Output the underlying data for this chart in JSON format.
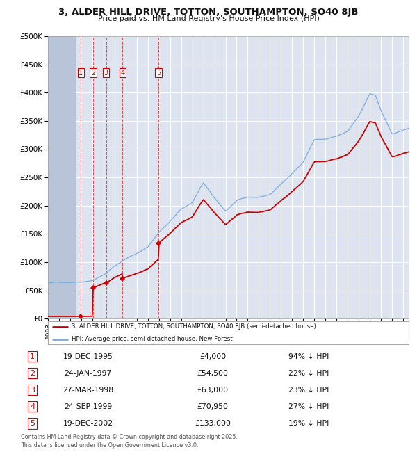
{
  "title": "3, ALDER HILL DRIVE, TOTTON, SOUTHAMPTON, SO40 8JB",
  "subtitle": "Price paid vs. HM Land Registry's House Price Index (HPI)",
  "red_label": "3, ALDER HILL DRIVE, TOTTON, SOUTHAMPTON, SO40 8JB (semi-detached house)",
  "blue_label": "HPI: Average price, semi-detached house, New Forest",
  "footer": "Contains HM Land Registry data © Crown copyright and database right 2025.\nThis data is licensed under the Open Government Licence v3.0.",
  "transactions": [
    {
      "num": 1,
      "date": "19-DEC-1995",
      "price": 4000,
      "pct": "94% ↓ HPI",
      "year": 1995.96
    },
    {
      "num": 2,
      "date": "24-JAN-1997",
      "price": 54500,
      "pct": "22% ↓ HPI",
      "year": 1997.07
    },
    {
      "num": 3,
      "date": "27-MAR-1998",
      "price": 63000,
      "pct": "23% ↓ HPI",
      "year": 1998.23
    },
    {
      "num": 4,
      "date": "24-SEP-1999",
      "price": 70950,
      "pct": "27% ↓ HPI",
      "year": 1999.73
    },
    {
      "num": 5,
      "date": "19-DEC-2002",
      "price": 133000,
      "pct": "19% ↓ HPI",
      "year": 2002.96
    }
  ],
  "ylim": [
    0,
    500000
  ],
  "xlim": [
    1993.0,
    2025.5
  ],
  "hatch_end_year": 1995.5,
  "bg_color": "#dde4f0",
  "hatch_color": "#b8c4d8",
  "grid_color": "#ffffff",
  "red_color": "#cc0000",
  "blue_color": "#7aaadd",
  "dashed_color": "#dd4444"
}
